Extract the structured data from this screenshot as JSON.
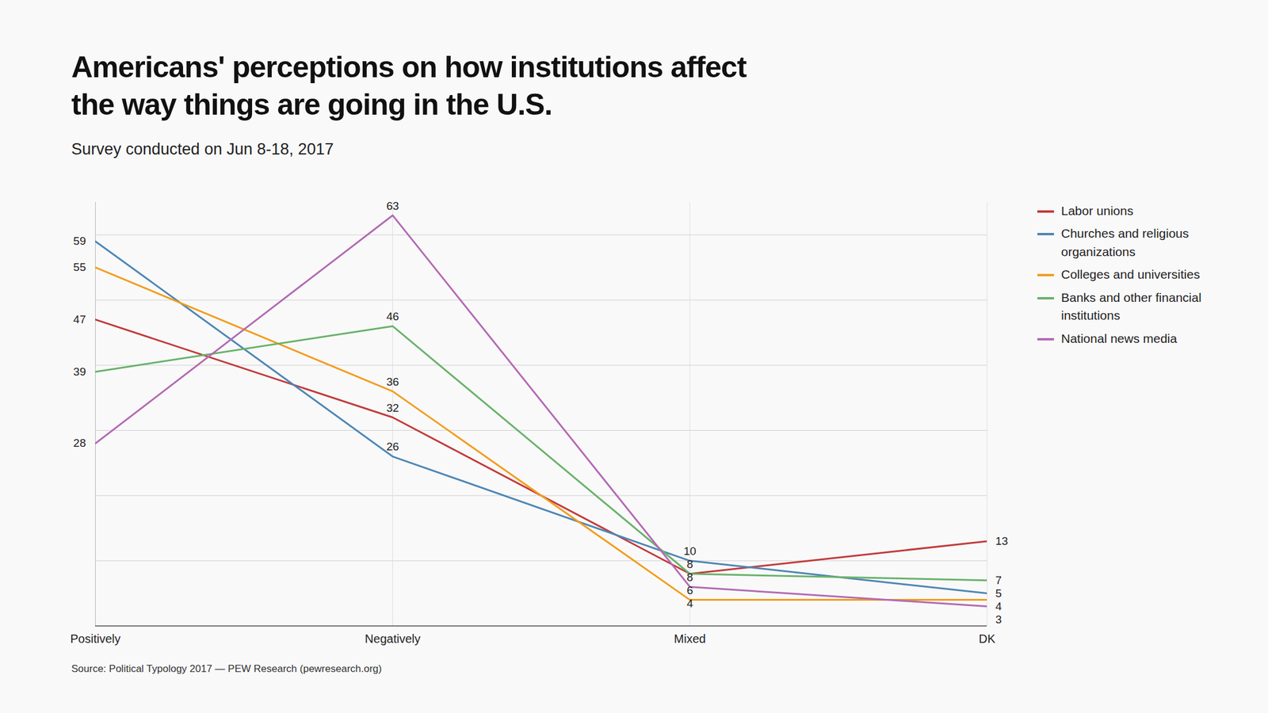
{
  "chart_data": {
    "type": "line",
    "title": "Americans' perceptions on how institutions affect the way things are going in the U.S.",
    "subtitle": "Survey conducted on Jun 8-18, 2017",
    "caption": "Source: Political Typology 2017 — PEW Research (pewresearch.org)",
    "categories": [
      "Positively",
      "Negatively",
      "Mixed",
      "DK"
    ],
    "series": [
      {
        "name": "Labor unions",
        "color": "#c23b3b",
        "values": [
          47,
          32,
          8,
          13
        ]
      },
      {
        "name": "Churches and religious organizations",
        "color": "#4e86b5",
        "values": [
          59,
          26,
          10,
          5
        ]
      },
      {
        "name": "Colleges and universities",
        "color": "#f39c1e",
        "values": [
          55,
          36,
          4,
          4
        ]
      },
      {
        "name": "Banks and other financial institutions",
        "color": "#6ab26b",
        "values": [
          39,
          46,
          8,
          7
        ]
      },
      {
        "name": "National news media",
        "color": "#b36bb3",
        "values": [
          28,
          63,
          6,
          3
        ]
      }
    ],
    "ylim": [
      0,
      65
    ],
    "yticks": [
      0,
      10,
      20,
      30,
      40,
      50,
      60
    ],
    "grid": true,
    "legend": "right",
    "data_labels": true,
    "tick_labels": "x"
  }
}
